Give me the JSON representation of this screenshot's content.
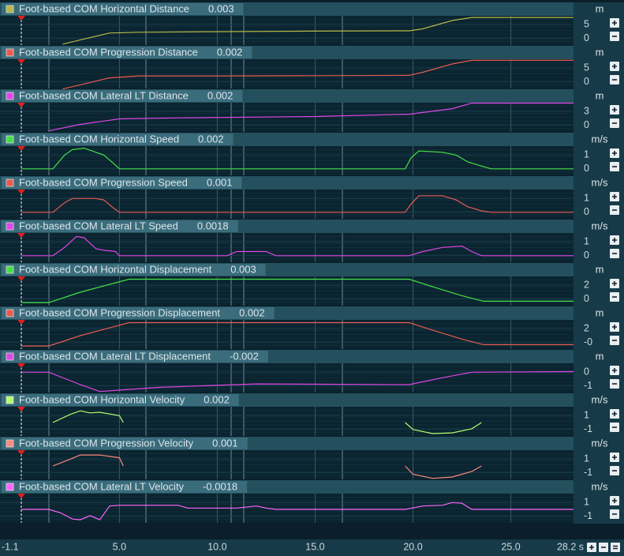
{
  "panels": [
    {
      "label": "Foot-based COM Horizontal Distance",
      "value": "0.003",
      "unit": "m",
      "color": "#b8b846",
      "ylim": [
        -2.6,
        8.2
      ],
      "yticks": [
        5,
        0
      ],
      "x": [
        2.1,
        3,
        4.5,
        6,
        10,
        15,
        19.8,
        20.5,
        22,
        23,
        28.2
      ],
      "values": [
        -2,
        -0.5,
        2,
        2.3,
        2.5,
        2.7,
        2.8,
        3.5,
        6.5,
        7.6,
        7.6
      ]
    },
    {
      "label": "Foot-based COM Progression Distance",
      "value": "0.002",
      "unit": "m",
      "color": "#e85a50",
      "ylim": [
        -2.6,
        8.2
      ],
      "yticks": [
        5,
        0
      ],
      "x": [
        2.1,
        3,
        4.5,
        6,
        10,
        15,
        19.8,
        20.5,
        22,
        23,
        28.2
      ],
      "values": [
        -2.5,
        -1,
        1.5,
        2.2,
        2.2,
        2.3,
        2.4,
        3.5,
        6.5,
        7.8,
        7.8
      ]
    },
    {
      "label": "Foot-based COM Lateral LT Distance",
      "value": "0.002",
      "unit": "m",
      "color": "#e046e6",
      "ylim": [
        -1.6,
        4.9
      ],
      "yticks": [
        3,
        0
      ],
      "x": [
        1.4,
        3,
        5,
        8,
        15,
        19.8,
        22,
        23,
        28.2
      ],
      "values": [
        -1.2,
        0.2,
        1.4,
        1.6,
        1.9,
        2.4,
        3.6,
        4.8,
        4.8
      ]
    },
    {
      "label": "Foot-based COM Horizontal Speed",
      "value": "0.002",
      "unit": "m/s",
      "color": "#46e046",
      "ylim": [
        -0.53,
        1.65
      ],
      "yticks": [
        1,
        0
      ],
      "x": [
        0,
        1.6,
        2.2,
        2.6,
        3.2,
        3.8,
        4.2,
        4.7,
        5,
        19.6,
        19.9,
        20.3,
        21.5,
        22.2,
        22.8,
        23.5,
        24,
        28.2
      ],
      "values": [
        0,
        0,
        1,
        1.4,
        1.5,
        1.2,
        1.0,
        0.4,
        0,
        0,
        0.8,
        1.3,
        1.2,
        1.0,
        0.5,
        0.2,
        0,
        0
      ]
    },
    {
      "label": "Foot-based COM Progression Speed",
      "value": "0.001",
      "unit": "m/s",
      "color": "#e85a50",
      "ylim": [
        -0.53,
        1.65
      ],
      "yticks": [
        1,
        0
      ],
      "x": [
        0,
        1.6,
        2.2,
        2.6,
        3.2,
        3.8,
        4.2,
        4.7,
        5,
        19.6,
        19.9,
        20.3,
        21.5,
        22.2,
        22.8,
        23.5,
        24,
        28.2
      ],
      "values": [
        0,
        0,
        0.7,
        1.0,
        1.0,
        1.0,
        0.9,
        0.3,
        0,
        0,
        0.6,
        1.2,
        1.2,
        0.9,
        0.4,
        0.1,
        0,
        0
      ]
    },
    {
      "label": "Foot-based COM Lateral LT Speed",
      "value": "0.0018",
      "unit": "m/s",
      "color": "#e046e6",
      "ylim": [
        -0.53,
        1.65
      ],
      "yticks": [
        1,
        0
      ],
      "x": [
        0,
        1.6,
        2.2,
        2.8,
        3.2,
        3.8,
        4.2,
        4.8,
        5,
        10.5,
        11,
        12.5,
        13,
        19.8,
        20.5,
        21.5,
        22.5,
        23,
        23.5,
        28.2
      ],
      "values": [
        0,
        0,
        0.6,
        1.4,
        1.3,
        0.5,
        0.4,
        0.3,
        0,
        0,
        0.3,
        0.3,
        0,
        0,
        0.3,
        0.6,
        0.7,
        0.3,
        0,
        0
      ]
    },
    {
      "label": "Foot-based COM Horizontal Displacement",
      "value": "0.003",
      "unit": "m",
      "color": "#46e046",
      "ylim": [
        -1.06,
        3.3
      ],
      "yticks": [
        2,
        0
      ],
      "x": [
        0,
        1.4,
        3,
        5.5,
        19.8,
        21,
        22.5,
        23.6,
        28.2
      ],
      "values": [
        -0.5,
        -0.5,
        1,
        2.9,
        2.9,
        1.8,
        0.5,
        -0.3,
        -0.3
      ]
    },
    {
      "label": "Foot-based COM Progression Displacement",
      "value": "0.002",
      "unit": "m",
      "color": "#e85a50",
      "ylim": [
        -1.06,
        3.3
      ],
      "yticks": [
        2,
        {
          "value": 0,
          "label": "-0"
        }
      ],
      "x": [
        0,
        1.4,
        3,
        5.5,
        19.8,
        21,
        22.5,
        23.6,
        28.2
      ],
      "values": [
        -0.5,
        -0.5,
        1,
        2.9,
        2.9,
        1.8,
        0.5,
        -0.3,
        -0.3
      ]
    },
    {
      "label": "Foot-based COM Lateral LT Displacement",
      "value": "-0.002",
      "unit": "m",
      "color": "#e046e6",
      "ylim": [
        -1.53,
        0.65
      ],
      "yticks": [
        0,
        -1
      ],
      "x": [
        0,
        1.4,
        3,
        4,
        5,
        7,
        12,
        19.8,
        21.5,
        23,
        28.2
      ],
      "values": [
        0,
        0,
        -0.9,
        -1.4,
        -1.3,
        -1.1,
        -0.85,
        -0.9,
        -0.4,
        0,
        0.05
      ]
    },
    {
      "label": "Foot-based COM Horizontal Velocity",
      "value": "0.002",
      "unit": "m/s",
      "color": "#b4ff6a",
      "ylim": [
        -2.06,
        2.3
      ],
      "yticks": [
        1,
        -1
      ],
      "x": [
        1.6,
        2.5,
        3,
        3.5,
        4,
        5,
        5.2,
        null,
        19.6,
        20,
        21,
        22,
        23,
        23.5
      ],
      "values": [
        0,
        1.2,
        1.7,
        1.4,
        1.5,
        1.0,
        0,
        null,
        0,
        -1,
        -1.6,
        -1.5,
        -0.9,
        0
      ]
    },
    {
      "label": "Foot-based COM Progression Velocity",
      "value": "0.001",
      "unit": "m/s",
      "color": "#ff8a80",
      "ylim": [
        -2.06,
        2.3
      ],
      "yticks": [
        1,
        -1
      ],
      "x": [
        1.6,
        2.5,
        3,
        3.5,
        4,
        5,
        5.2,
        null,
        19.6,
        20,
        21,
        22,
        23,
        23.5
      ],
      "values": [
        0,
        1.0,
        1.6,
        1.6,
        1.6,
        1.2,
        0,
        null,
        0,
        -1.2,
        -1.8,
        -1.6,
        -0.8,
        0
      ]
    },
    {
      "label": "Foot-based COM Lateral LT Velocity",
      "value": "-0.0018",
      "unit": "m/s",
      "color": "#ff66ff",
      "ylim": [
        -2.06,
        2.3
      ],
      "yticks": [
        1,
        -1
      ],
      "x": [
        0,
        1.4,
        2,
        2.6,
        3,
        3.5,
        4,
        4.5,
        5,
        8,
        8.5,
        11,
        12,
        12.5,
        13,
        19.6,
        20.5,
        21.5,
        22,
        22.5,
        23,
        28.2
      ],
      "values": [
        0,
        0,
        -0.5,
        -1.4,
        -1.5,
        -0.9,
        -1.5,
        0.5,
        0.6,
        0.6,
        0.2,
        0.2,
        0.5,
        0.2,
        0,
        0,
        0.5,
        0.6,
        1.0,
        0.9,
        0,
        0
      ]
    }
  ],
  "xaxis": {
    "xlim": [
      -1.1,
      28.2
    ],
    "xticks": [
      -1.1,
      {
        "value": 5,
        "label": "5.0"
      },
      {
        "value": 10,
        "label": "10.0"
      },
      {
        "value": 15,
        "label": "15.0"
      },
      {
        "value": 20,
        "label": "20.0"
      },
      {
        "value": 25,
        "label": "25.0"
      },
      {
        "value": 28.2,
        "label": "28.2 s"
      }
    ]
  }
}
